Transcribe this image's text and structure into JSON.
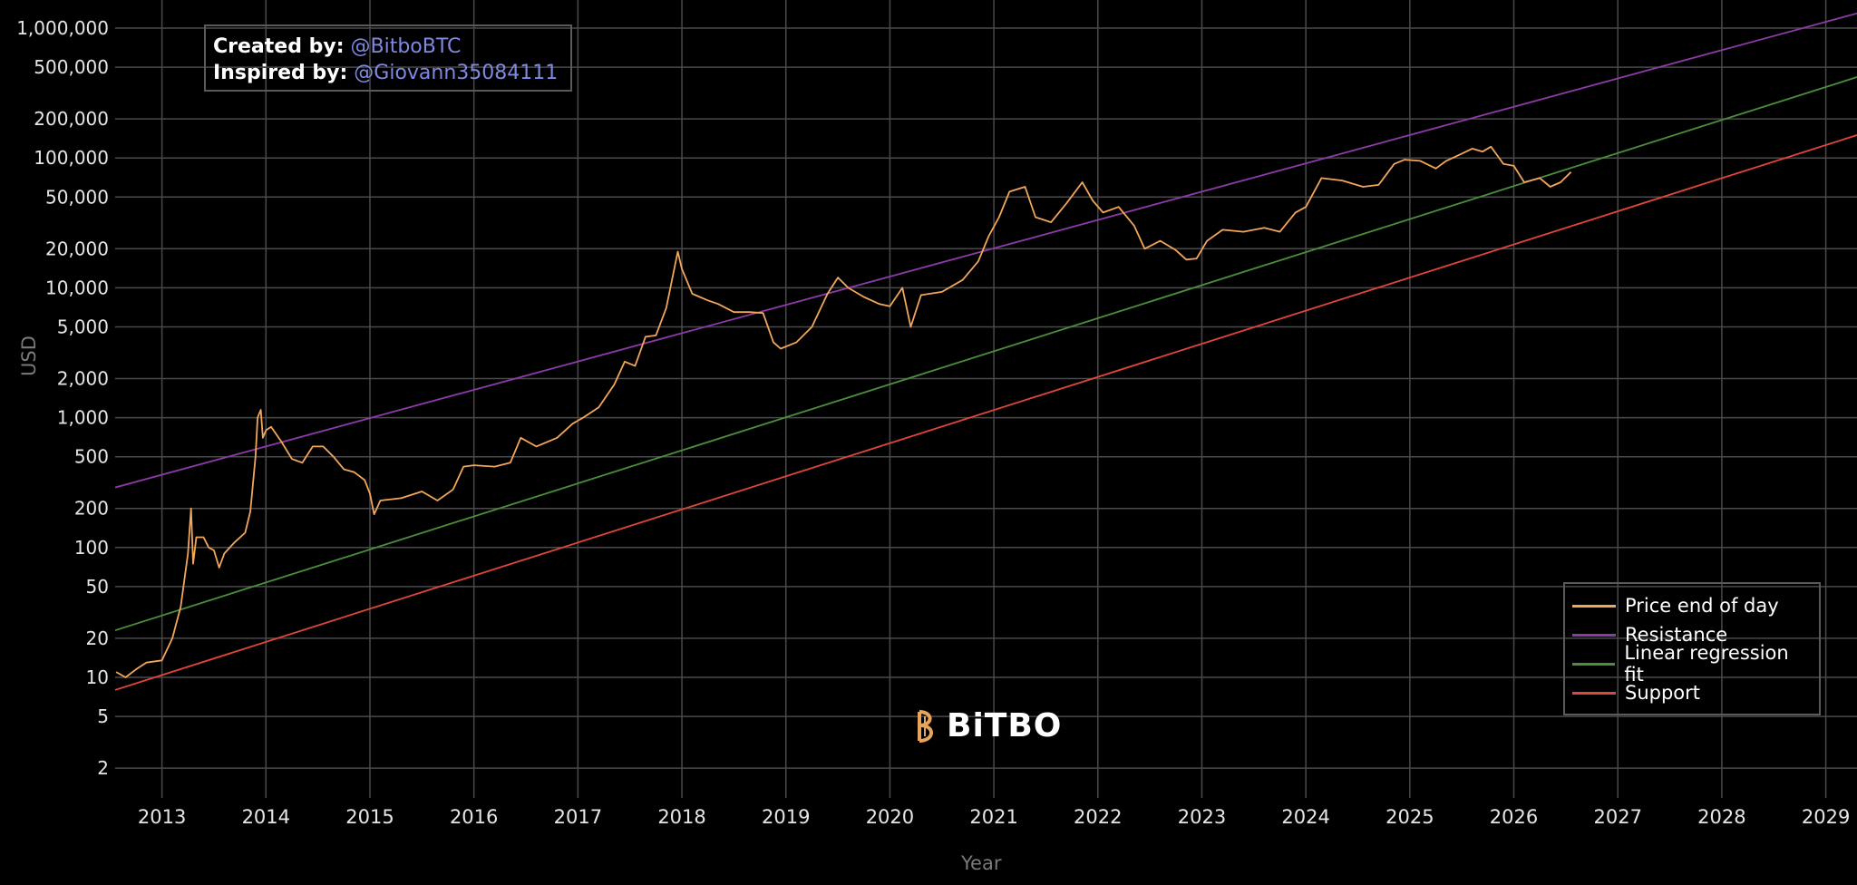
{
  "credits": {
    "created_label": "Created by:",
    "created_value": "@BitboBTC",
    "inspired_label": "Inspired by:",
    "inspired_value": "@Giovann35084111"
  },
  "brand": {
    "name": "BiTBO",
    "icon": "bitbo-logo-icon"
  },
  "colors": {
    "background": "#000000",
    "grid": "#4a4a4a",
    "price": "#f2a65a",
    "resistance": "#8e3aa8",
    "regression": "#4a8f3a",
    "support": "#e0463a",
    "credit_link": "#7f89e0"
  },
  "chart_data": {
    "type": "line",
    "xlabel": "Year",
    "ylabel": "USD",
    "y_scale": "log",
    "ylim": [
      1,
      1500000
    ],
    "xlim": [
      2012.55,
      2029.3
    ],
    "x_ticks": [
      {
        "value": 2013,
        "label": "2013"
      },
      {
        "value": 2014,
        "label": "2014"
      },
      {
        "value": 2015,
        "label": "2015"
      },
      {
        "value": 2016,
        "label": "2016"
      },
      {
        "value": 2017,
        "label": "2017"
      },
      {
        "value": 2018,
        "label": "2018"
      },
      {
        "value": 2019,
        "label": "2019"
      },
      {
        "value": 2020,
        "label": "2020"
      },
      {
        "value": 2021,
        "label": "2021"
      },
      {
        "value": 2022,
        "label": "2022"
      },
      {
        "value": 2023,
        "label": "2023"
      },
      {
        "value": 2024,
        "label": "2024"
      },
      {
        "value": 2025,
        "label": "2025"
      },
      {
        "value": 2026,
        "label": "2026"
      },
      {
        "value": 2027,
        "label": "2027"
      },
      {
        "value": 2028,
        "label": "2028"
      },
      {
        "value": 2029,
        "label": "2029"
      }
    ],
    "y_ticks": [
      {
        "value": 2,
        "label": "2"
      },
      {
        "value": 5,
        "label": "5"
      },
      {
        "value": 10,
        "label": "10"
      },
      {
        "value": 20,
        "label": "20"
      },
      {
        "value": 50,
        "label": "50"
      },
      {
        "value": 100,
        "label": "100"
      },
      {
        "value": 200,
        "label": "200"
      },
      {
        "value": 500,
        "label": "500"
      },
      {
        "value": 1000,
        "label": "1,000"
      },
      {
        "value": 2000,
        "label": "2,000"
      },
      {
        "value": 5000,
        "label": "5,000"
      },
      {
        "value": 10000,
        "label": "10,000"
      },
      {
        "value": 20000,
        "label": "20,000"
      },
      {
        "value": 50000,
        "label": "50,000"
      },
      {
        "value": 100000,
        "label": "100,000"
      },
      {
        "value": 200000,
        "label": "200,000"
      },
      {
        "value": 500000,
        "label": "500,000"
      },
      {
        "value": 1000000,
        "label": "1,000,000"
      }
    ],
    "legend_position": "bottom-right",
    "grid": true,
    "series": [
      {
        "name": "Price end of day",
        "color": "#f2a65a",
        "points": [
          [
            2012.56,
            11
          ],
          [
            2012.65,
            10
          ],
          [
            2012.75,
            11.5
          ],
          [
            2012.85,
            13
          ],
          [
            2013.0,
            13.5
          ],
          [
            2013.1,
            20
          ],
          [
            2013.18,
            35
          ],
          [
            2013.25,
            90
          ],
          [
            2013.28,
            200
          ],
          [
            2013.3,
            75
          ],
          [
            2013.33,
            120
          ],
          [
            2013.4,
            120
          ],
          [
            2013.45,
            100
          ],
          [
            2013.5,
            95
          ],
          [
            2013.55,
            70
          ],
          [
            2013.6,
            90
          ],
          [
            2013.7,
            110
          ],
          [
            2013.8,
            130
          ],
          [
            2013.85,
            190
          ],
          [
            2013.9,
            500
          ],
          [
            2013.92,
            1000
          ],
          [
            2013.95,
            1150
          ],
          [
            2013.97,
            700
          ],
          [
            2014.0,
            800
          ],
          [
            2014.05,
            850
          ],
          [
            2014.15,
            650
          ],
          [
            2014.25,
            480
          ],
          [
            2014.35,
            450
          ],
          [
            2014.45,
            600
          ],
          [
            2014.55,
            600
          ],
          [
            2014.65,
            500
          ],
          [
            2014.75,
            400
          ],
          [
            2014.85,
            380
          ],
          [
            2014.95,
            330
          ],
          [
            2015.0,
            260
          ],
          [
            2015.04,
            180
          ],
          [
            2015.1,
            230
          ],
          [
            2015.3,
            240
          ],
          [
            2015.5,
            270
          ],
          [
            2015.65,
            230
          ],
          [
            2015.8,
            280
          ],
          [
            2015.9,
            420
          ],
          [
            2016.0,
            430
          ],
          [
            2016.2,
            420
          ],
          [
            2016.35,
            450
          ],
          [
            2016.45,
            700
          ],
          [
            2016.6,
            600
          ],
          [
            2016.8,
            700
          ],
          [
            2016.95,
            900
          ],
          [
            2017.05,
            1000
          ],
          [
            2017.2,
            1200
          ],
          [
            2017.35,
            1800
          ],
          [
            2017.45,
            2700
          ],
          [
            2017.55,
            2500
          ],
          [
            2017.65,
            4200
          ],
          [
            2017.75,
            4300
          ],
          [
            2017.85,
            7000
          ],
          [
            2017.96,
            19000
          ],
          [
            2018.0,
            14000
          ],
          [
            2018.1,
            9000
          ],
          [
            2018.25,
            8000
          ],
          [
            2018.35,
            7500
          ],
          [
            2018.5,
            6500
          ],
          [
            2018.65,
            6500
          ],
          [
            2018.78,
            6400
          ],
          [
            2018.88,
            3800
          ],
          [
            2018.95,
            3400
          ],
          [
            2019.1,
            3800
          ],
          [
            2019.25,
            5000
          ],
          [
            2019.4,
            9000
          ],
          [
            2019.5,
            12000
          ],
          [
            2019.6,
            10000
          ],
          [
            2019.75,
            8500
          ],
          [
            2019.9,
            7500
          ],
          [
            2020.0,
            7200
          ],
          [
            2020.12,
            10000
          ],
          [
            2020.2,
            5000
          ],
          [
            2020.3,
            8800
          ],
          [
            2020.5,
            9300
          ],
          [
            2020.7,
            11500
          ],
          [
            2020.85,
            16000
          ],
          [
            2020.95,
            25000
          ],
          [
            2021.05,
            35000
          ],
          [
            2021.15,
            55000
          ],
          [
            2021.3,
            60000
          ],
          [
            2021.4,
            35000
          ],
          [
            2021.55,
            32000
          ],
          [
            2021.7,
            45000
          ],
          [
            2021.85,
            65000
          ],
          [
            2021.95,
            47000
          ],
          [
            2022.05,
            38000
          ],
          [
            2022.2,
            42000
          ],
          [
            2022.35,
            30000
          ],
          [
            2022.45,
            20000
          ],
          [
            2022.6,
            23000
          ],
          [
            2022.75,
            19500
          ],
          [
            2022.85,
            16500
          ],
          [
            2022.95,
            16800
          ],
          [
            2023.05,
            23000
          ],
          [
            2023.2,
            28000
          ],
          [
            2023.4,
            27000
          ],
          [
            2023.6,
            29000
          ],
          [
            2023.75,
            27000
          ],
          [
            2023.9,
            38000
          ],
          [
            2024.0,
            42000
          ],
          [
            2024.15,
            70000
          ],
          [
            2024.35,
            67000
          ],
          [
            2024.55,
            60000
          ],
          [
            2024.7,
            62000
          ],
          [
            2024.85,
            90000
          ],
          [
            2024.95,
            97000
          ],
          [
            2025.1,
            95000
          ],
          [
            2025.25,
            83000
          ],
          [
            2025.35,
            95000
          ],
          [
            2025.5,
            108000
          ],
          [
            2025.6,
            118000
          ],
          [
            2025.7,
            112000
          ],
          [
            2025.78,
            122000
          ],
          [
            2025.9,
            90000
          ],
          [
            2026.0,
            87000
          ],
          [
            2026.1,
            65000
          ],
          [
            2026.25,
            70000
          ],
          [
            2026.35,
            60000
          ],
          [
            2026.45,
            65000
          ],
          [
            2026.55,
            78000
          ]
        ]
      },
      {
        "name": "Resistance",
        "color": "#8e3aa8",
        "line": [
          [
            2012.55,
            290
          ],
          [
            2029.3,
            1300000
          ]
        ]
      },
      {
        "name": "Linear regression fit",
        "color": "#4a8f3a",
        "line": [
          [
            2012.55,
            23
          ],
          [
            2029.3,
            420000
          ]
        ]
      },
      {
        "name": "Support",
        "color": "#e0463a",
        "line": [
          [
            2012.55,
            8
          ],
          [
            2029.3,
            150000
          ]
        ]
      }
    ]
  }
}
